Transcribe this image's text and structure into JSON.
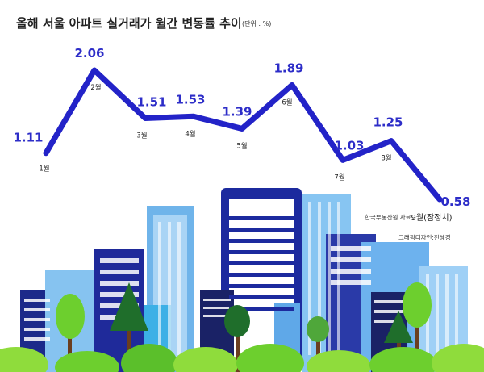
{
  "header": {
    "title": "올해 서울 아파트 실거래가 월간 변동률 추이",
    "unit": "(단위 : %)"
  },
  "footer": {
    "source": "한국부동산원 자료",
    "designer": "그래픽디자인:전혜경"
  },
  "colors": {
    "line": "#2323c8",
    "value_label": "#2d2dc8",
    "month_label": "#222222"
  },
  "chart_data": {
    "type": "line",
    "title": "올해 서울 아파트 실거래가 월간 변동률 추이",
    "unit": "%",
    "categories": [
      "1월",
      "2월",
      "3월",
      "4월",
      "5월",
      "6월",
      "7월",
      "8월",
      "9월(잠정치)"
    ],
    "series": [
      {
        "values": [
          1.11,
          2.06,
          1.51,
          1.53,
          1.39,
          1.89,
          1.03,
          1.25,
          0.58
        ]
      }
    ],
    "value_labels": [
      "1.11",
      "2.06",
      "1.51",
      "1.53",
      "1.39",
      "1.89",
      "1.03",
      "1.25",
      "0.58"
    ],
    "ylim": [
      0.4,
      2.2
    ],
    "grid": false,
    "legend": "none"
  }
}
